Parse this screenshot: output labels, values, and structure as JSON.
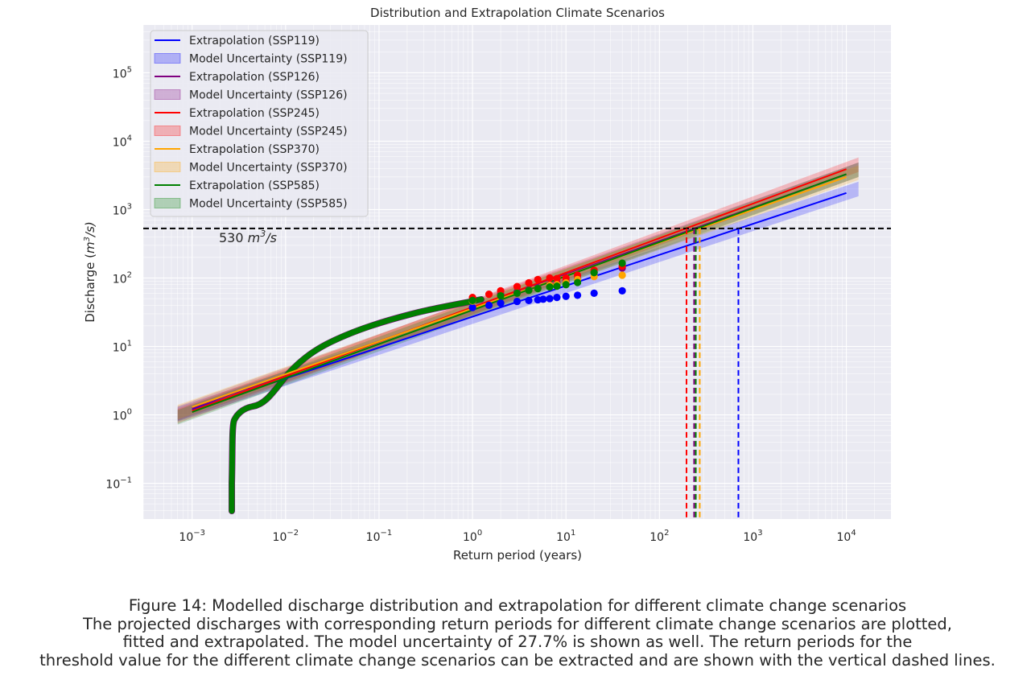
{
  "chart_data": {
    "type": "line",
    "title": "Distribution and Extrapolation Climate Scenarios",
    "xlabel": "Return period (years)",
    "ylabel_prefix": "Discharge (",
    "ylabel_unit_base": "m",
    "ylabel_unit_exp": "3",
    "ylabel_suffix": "/s)",
    "x_scale": "log",
    "y_scale": "log",
    "xlim": [
      0.0003,
      30000
    ],
    "ylim": [
      0.03,
      500000
    ],
    "grid": true,
    "legend_position": "top-left",
    "x_ticks": [
      {
        "base": "10",
        "exp": "−3"
      },
      {
        "base": "10",
        "exp": "−2"
      },
      {
        "base": "10",
        "exp": "−1"
      },
      {
        "base": "10",
        "exp": "0"
      },
      {
        "base": "10",
        "exp": "1"
      },
      {
        "base": "10",
        "exp": "2"
      },
      {
        "base": "10",
        "exp": "3"
      },
      {
        "base": "10",
        "exp": "4"
      }
    ],
    "y_ticks": [
      {
        "base": "10",
        "exp": "−1"
      },
      {
        "base": "10",
        "exp": "0"
      },
      {
        "base": "10",
        "exp": "1"
      },
      {
        "base": "10",
        "exp": "2"
      },
      {
        "base": "10",
        "exp": "3"
      },
      {
        "base": "10",
        "exp": "4"
      },
      {
        "base": "10",
        "exp": "5"
      }
    ],
    "threshold": {
      "value": 530,
      "label_value": "530",
      "label_unit_base": "m",
      "label_unit_exp": "3",
      "label_unit_suffix": "/s",
      "color": "#000000"
    },
    "uncertainty_percent": 27.7,
    "series": [
      {
        "line_label": "Extrapolation (SSP119)",
        "band_label": "Model Uncertainty (SSP119)",
        "color": "#0000ff",
        "fit_x_range": [
          0.001,
          10000
        ],
        "fit_y_range": [
          1.2,
          1750
        ],
        "return_period_at_threshold": 700,
        "points": [
          [
            40,
            65
          ],
          [
            20,
            60
          ],
          [
            13.3,
            56
          ],
          [
            10,
            54
          ],
          [
            8,
            52
          ],
          [
            6.7,
            50
          ],
          [
            5.7,
            49
          ],
          [
            5,
            48
          ],
          [
            4,
            47
          ],
          [
            3,
            45.5
          ],
          [
            2,
            43
          ],
          [
            1.5,
            40
          ],
          [
            1,
            37
          ]
        ]
      },
      {
        "line_label": "Extrapolation (SSP126)",
        "band_label": "Model Uncertainty (SSP126)",
        "color": "#800080",
        "fit_x_range": [
          0.001,
          10000
        ],
        "fit_y_range": [
          1.25,
          3300
        ],
        "return_period_at_threshold": 235,
        "points": [
          [
            40,
            140
          ],
          [
            20,
            120
          ],
          [
            13.3,
            100
          ],
          [
            10,
            90
          ],
          [
            8,
            85
          ],
          [
            6.7,
            80
          ],
          [
            5,
            72
          ],
          [
            4,
            68
          ],
          [
            3,
            63
          ],
          [
            2,
            58
          ],
          [
            1,
            48
          ]
        ]
      },
      {
        "line_label": "Extrapolation (SSP245)",
        "band_label": "Model Uncertainty (SSP245)",
        "color": "#ff0000",
        "fit_x_range": [
          0.001,
          10000
        ],
        "fit_y_range": [
          1.15,
          3900
        ],
        "return_period_at_threshold": 195,
        "points": [
          [
            40,
            150
          ],
          [
            20,
            130
          ],
          [
            13.3,
            110
          ],
          [
            10,
            100
          ],
          [
            8,
            98
          ],
          [
            6.7,
            100
          ],
          [
            5,
            95
          ],
          [
            4,
            85
          ],
          [
            3,
            75
          ],
          [
            2,
            65
          ],
          [
            1.5,
            58
          ],
          [
            1,
            52
          ]
        ]
      },
      {
        "line_label": "Extrapolation (SSP370)",
        "band_label": "Model Uncertainty (SSP370)",
        "color": "#ffa500",
        "fit_x_range": [
          0.001,
          10000
        ],
        "fit_y_range": [
          1.3,
          3000
        ],
        "return_period_at_threshold": 270,
        "points": [
          [
            40,
            110
          ],
          [
            20,
            105
          ],
          [
            13.3,
            95
          ],
          [
            10,
            85
          ],
          [
            8,
            80
          ],
          [
            6.7,
            78
          ],
          [
            5,
            70
          ],
          [
            4,
            66
          ],
          [
            3,
            60
          ],
          [
            2,
            55
          ],
          [
            1,
            46
          ]
        ]
      },
      {
        "line_label": "Extrapolation (SSP585)",
        "band_label": "Model Uncertainty (SSP585)",
        "color": "#008000",
        "fit_x_range": [
          0.001,
          10000
        ],
        "fit_y_range": [
          1.1,
          3300
        ],
        "return_period_at_threshold": 245,
        "points": [
          [
            40,
            165
          ],
          [
            20,
            120
          ],
          [
            13.3,
            86
          ],
          [
            10,
            80
          ],
          [
            8,
            76
          ],
          [
            6.7,
            74
          ],
          [
            5,
            70
          ],
          [
            4,
            66
          ],
          [
            3,
            60
          ],
          [
            2,
            55
          ],
          [
            1,
            47
          ]
        ]
      }
    ]
  },
  "caption": {
    "line1": "Figure 14: Modelled discharge distribution and extrapolation for different climate change scenarios",
    "line2": "The projected discharges with corresponding return periods for different climate change scenarios are plotted,",
    "line3": "fitted and extrapolated. The model uncertainty of 27.7% is shown as well. The return periods for the",
    "line4": "threshold value for the different climate change scenarios can be extracted and are shown with the vertical dashed lines."
  }
}
